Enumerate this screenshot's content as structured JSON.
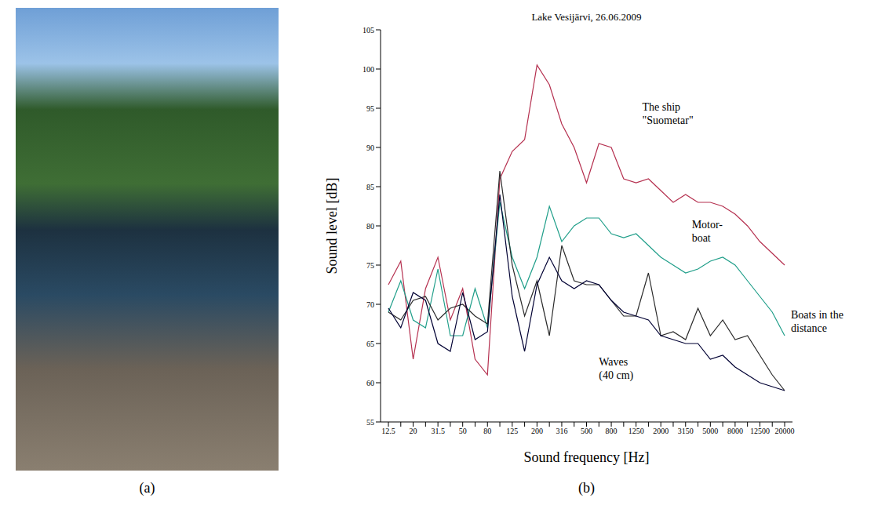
{
  "panel_labels": [
    "(a)",
    "(b)"
  ],
  "chart_data": {
    "type": "line",
    "title": "Lake Vesijärvi, 26.06.2009",
    "x_label": "Sound frequency [Hz]",
    "y_label": "Sound level [dB]",
    "categories": [
      "12.5",
      null,
      "20",
      null,
      "31.5",
      null,
      "50",
      null,
      "80",
      null,
      "125",
      null,
      "200",
      null,
      "316",
      null,
      "500",
      null,
      "800",
      null,
      "1250",
      null,
      "2000",
      null,
      "3150",
      null,
      "5000",
      null,
      "8000",
      null,
      "12500",
      null,
      "20000"
    ],
    "ylim": [
      55,
      105
    ],
    "yticks": [
      55,
      60,
      65,
      70,
      75,
      80,
      85,
      90,
      95,
      100,
      105
    ],
    "grid": false,
    "series": [
      {
        "name": "The ship \"Suometar\"",
        "color": "#b5304f",
        "values": [
          72.5,
          75.5,
          63,
          72,
          76,
          68,
          72,
          63,
          61,
          86,
          89.5,
          91,
          100.5,
          98,
          93,
          90,
          85.5,
          90.5,
          90,
          86,
          85.5,
          86,
          84.5,
          83,
          84,
          83,
          83,
          82.5,
          81.5,
          80,
          78,
          76.5,
          75
        ]
      },
      {
        "name": "Motor-boat",
        "color": "#1f9e89",
        "values": [
          69,
          73,
          68,
          67,
          74.5,
          66,
          66,
          72,
          67,
          83,
          76,
          72,
          76,
          82.5,
          78,
          80,
          81,
          81,
          79,
          78.5,
          79,
          77.5,
          76,
          75,
          74,
          74.5,
          75.5,
          76,
          75,
          73,
          71,
          69,
          66
        ]
      },
      {
        "name": "Boats in the distance",
        "color": "#2a2a2a",
        "values": [
          69,
          68,
          70.5,
          71,
          68,
          69.5,
          70,
          68.5,
          67.5,
          87,
          75,
          68.5,
          73,
          66,
          77.5,
          73,
          72.5,
          72.5,
          70.5,
          68.5,
          68.5,
          74,
          66,
          66.5,
          65.5,
          69.5,
          66,
          68,
          65.5,
          66,
          63.5,
          61,
          59
        ]
      },
      {
        "name": "Waves (40 cm)",
        "color": "#000033",
        "values": [
          69.5,
          67,
          71.5,
          70.5,
          65,
          64,
          71.5,
          65.5,
          66.5,
          84,
          71,
          64,
          72.5,
          76,
          73,
          72,
          73,
          72.5,
          70.5,
          69,
          68.5,
          68,
          66,
          65.5,
          65,
          65,
          63,
          63.5,
          62,
          61,
          60,
          59.5,
          59
        ]
      }
    ]
  }
}
